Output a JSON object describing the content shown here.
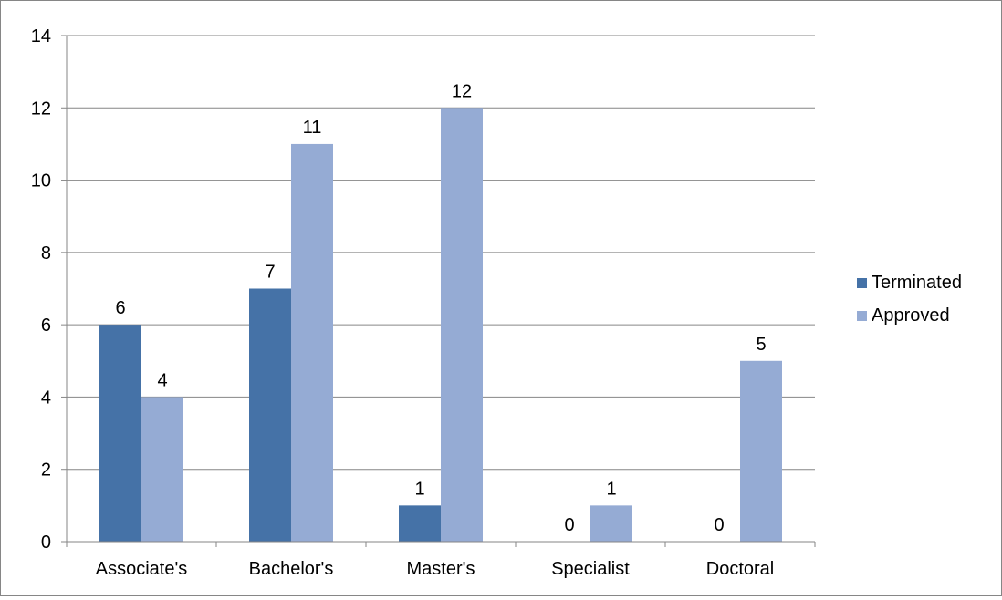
{
  "chart_data": {
    "type": "bar",
    "categories": [
      "Associate's",
      "Bachelor's",
      "Master's",
      "Specialist",
      "Doctoral"
    ],
    "series": [
      {
        "name": "Terminated",
        "values": [
          6,
          7,
          1,
          0,
          0
        ],
        "color": "#4572A7"
      },
      {
        "name": "Approved",
        "values": [
          4,
          11,
          12,
          1,
          5
        ],
        "color": "#95ABD4"
      }
    ],
    "ylim": [
      0,
      14
    ],
    "yticks": [
      0,
      2,
      4,
      6,
      8,
      10,
      12,
      14
    ],
    "grid": true,
    "legend_position": "right",
    "data_labels": true
  }
}
